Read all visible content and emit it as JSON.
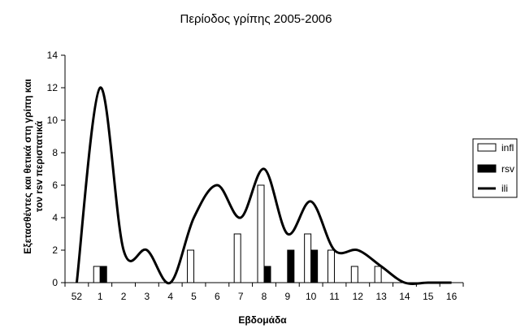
{
  "chart_data": {
    "type": "bar",
    "title": "Περίοδος γρίπης 2005-2006",
    "xlabel": "Εβδομάδα",
    "ylabel_lines": [
      "Εξετασθέντες και θετικά στη γρίπη και",
      "τον rsv περιστατικά"
    ],
    "categories": [
      "52",
      "1",
      "2",
      "3",
      "4",
      "5",
      "6",
      "7",
      "8",
      "9",
      "10",
      "11",
      "12",
      "13",
      "14",
      "15",
      "16"
    ],
    "ylim": [
      0,
      14
    ],
    "yticks": [
      0,
      2,
      4,
      6,
      8,
      10,
      12,
      14
    ],
    "legend_position": "right",
    "series": [
      {
        "name": "infl",
        "kind": "bar",
        "color": "#ffffff",
        "values": [
          0,
          1,
          0,
          0,
          0,
          2,
          0,
          3,
          6,
          0,
          3,
          2,
          1,
          1,
          0,
          0,
          0
        ]
      },
      {
        "name": "rsv",
        "kind": "bar",
        "color": "#000000",
        "values": [
          0,
          1,
          0,
          0,
          0,
          0,
          0,
          0,
          1,
          2,
          2,
          0,
          0,
          0,
          0,
          0,
          0
        ]
      },
      {
        "name": "ili",
        "kind": "line",
        "color": "#000000",
        "values": [
          0,
          12,
          2,
          2,
          0,
          4,
          6,
          4,
          7,
          3,
          5,
          2,
          2,
          1,
          0,
          0,
          0
        ]
      }
    ]
  }
}
